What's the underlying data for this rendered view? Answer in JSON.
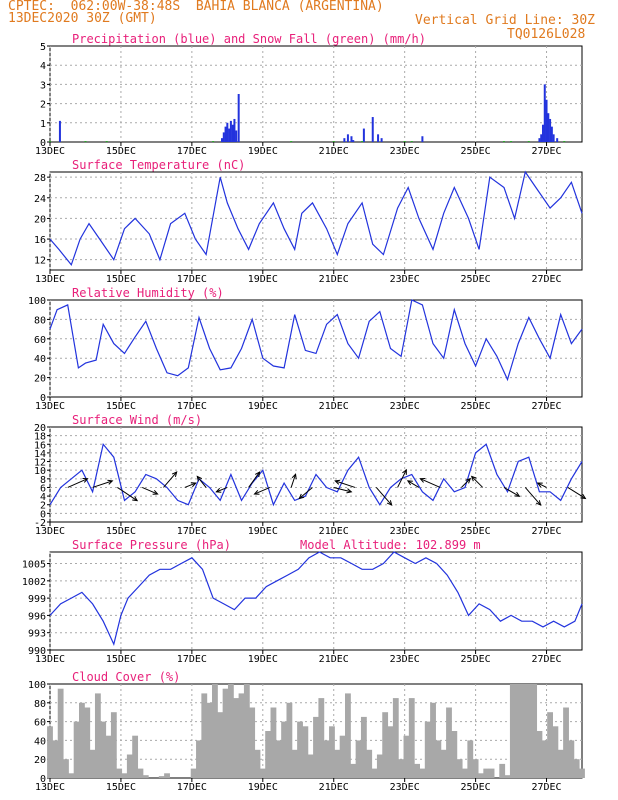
{
  "header": {
    "station": "CPTEC:  062:00W-38:48S  BAHIA BLANCA (ARGENTINA)",
    "run": "13DEC2020 30Z (GMT)",
    "grid_note": "Vertical Grid Line: 30Z",
    "model_code": "TQ0126L028",
    "color": "#e07a1f"
  },
  "colors": {
    "title": "#e8207a",
    "line": "#2233dd",
    "precip": "#2233dd",
    "snow": "#22aa22",
    "cloud": "#a8a8a8",
    "grid": "#aaaaaa",
    "arrow": "#000000"
  },
  "x_axis": {
    "tick_days": [
      0,
      2,
      4,
      6,
      8,
      10,
      12,
      14
    ],
    "tick_labels": [
      "13DEC",
      "15DEC",
      "17DEC",
      "19DEC",
      "21DEC",
      "23DEC",
      "25DEC",
      "27DEC"
    ],
    "day_range": [
      0,
      15
    ]
  },
  "chart_data": [
    {
      "type": "bar",
      "title": "Precipitation (blue) and Snow Fall (green) (mm/h)",
      "ylim": [
        0,
        5
      ],
      "yticks": [
        0,
        1,
        2,
        3,
        4,
        5
      ],
      "series": [
        {
          "name": "Precipitation",
          "x_day": [
            0.28,
            4.85,
            4.9,
            4.95,
            5.0,
            5.05,
            5.1,
            5.15,
            5.2,
            5.25,
            5.32,
            8.3,
            8.4,
            8.5,
            8.55,
            8.85,
            9.1,
            9.25,
            9.35,
            10.5,
            13.8,
            13.85,
            13.9,
            13.95,
            14.0,
            14.05,
            14.1,
            14.15,
            14.2,
            14.3
          ],
          "values": [
            1.1,
            0.2,
            0.5,
            0.8,
            1.0,
            0.7,
            1.1,
            0.9,
            1.2,
            0.6,
            2.5,
            0.2,
            0.4,
            0.3,
            0.1,
            0.7,
            1.3,
            0.4,
            0.2,
            0.3,
            0.2,
            0.4,
            0.9,
            3.0,
            2.2,
            1.5,
            1.2,
            0.8,
            0.4,
            0.2
          ]
        },
        {
          "name": "Snow Fall",
          "x_day": [
            0.0,
            1.0,
            1.6,
            4.6,
            6.8,
            8.0,
            8.8,
            10.0,
            10.2,
            12.8,
            13.0,
            13.5,
            14.5
          ],
          "values": [
            0.05,
            0.05,
            0.05,
            0.05,
            0.05,
            0.05,
            0.05,
            0.05,
            0.05,
            0.05,
            0.05,
            0.05,
            0.05
          ]
        }
      ]
    },
    {
      "type": "line",
      "title": "Surface Temperature (nC)",
      "ylim": [
        10,
        29
      ],
      "yticks": [
        12,
        16,
        20,
        24,
        28
      ],
      "series": [
        {
          "name": "",
          "x_day": [
            0,
            0.25,
            0.6,
            0.85,
            1.1,
            1.4,
            1.8,
            2.1,
            2.4,
            2.8,
            3.1,
            3.4,
            3.8,
            4.1,
            4.4,
            4.8,
            5.0,
            5.3,
            5.6,
            5.9,
            6.3,
            6.6,
            6.9,
            7.1,
            7.4,
            7.8,
            8.1,
            8.4,
            8.8,
            9.1,
            9.4,
            9.8,
            10.1,
            10.4,
            10.8,
            11.1,
            11.4,
            11.8,
            12.1,
            12.4,
            12.8,
            13.1,
            13.4,
            13.7,
            14.1,
            14.4,
            14.7,
            15.0
          ],
          "values": [
            16,
            14,
            11,
            16,
            19,
            16,
            12,
            18,
            20,
            17,
            12,
            19,
            21,
            16,
            13,
            28,
            23,
            18,
            14,
            19,
            23,
            18,
            14,
            21,
            23,
            18,
            13,
            19,
            23,
            15,
            13,
            22,
            26,
            20,
            14,
            21,
            26,
            20,
            14,
            28,
            26,
            20,
            29,
            26,
            22,
            24,
            27,
            21
          ]
        }
      ]
    },
    {
      "type": "line",
      "title": "Relative Humidity (%)",
      "ylim": [
        0,
        100
      ],
      "yticks": [
        0,
        20,
        40,
        60,
        80,
        100
      ],
      "series": [
        {
          "name": "",
          "x_day": [
            0,
            0.2,
            0.5,
            0.8,
            1.0,
            1.3,
            1.5,
            1.8,
            2.1,
            2.4,
            2.7,
            3.0,
            3.3,
            3.6,
            3.9,
            4.2,
            4.5,
            4.8,
            5.1,
            5.4,
            5.7,
            6.0,
            6.3,
            6.6,
            6.9,
            7.2,
            7.5,
            7.8,
            8.1,
            8.4,
            8.7,
            9.0,
            9.3,
            9.6,
            9.9,
            10.2,
            10.5,
            10.8,
            11.1,
            11.4,
            11.7,
            12.0,
            12.3,
            12.6,
            12.9,
            13.2,
            13.5,
            13.8,
            14.1,
            14.4,
            14.7,
            15.0
          ],
          "values": [
            70,
            90,
            95,
            30,
            35,
            38,
            75,
            55,
            45,
            62,
            78,
            50,
            25,
            22,
            30,
            82,
            50,
            28,
            30,
            50,
            80,
            40,
            32,
            30,
            85,
            48,
            45,
            75,
            85,
            55,
            40,
            78,
            88,
            50,
            42,
            100,
            95,
            55,
            40,
            90,
            55,
            32,
            60,
            42,
            18,
            55,
            82,
            60,
            40,
            85,
            55,
            70
          ]
        }
      ]
    },
    {
      "type": "line",
      "title": "Surface Wind (m/s)",
      "ylim": [
        -2,
        20
      ],
      "yticks": [
        -2,
        0,
        2,
        4,
        6,
        8,
        10,
        12,
        14,
        16,
        18,
        20
      ],
      "series": [
        {
          "name": "",
          "x_day": [
            0,
            0.3,
            0.6,
            0.9,
            1.2,
            1.5,
            1.8,
            2.1,
            2.4,
            2.7,
            3.0,
            3.3,
            3.6,
            3.9,
            4.2,
            4.5,
            4.8,
            5.1,
            5.4,
            5.7,
            6.0,
            6.3,
            6.6,
            6.9,
            7.2,
            7.5,
            7.8,
            8.1,
            8.4,
            8.7,
            9.0,
            9.3,
            9.6,
            9.9,
            10.2,
            10.5,
            10.8,
            11.1,
            11.4,
            11.7,
            12.0,
            12.3,
            12.6,
            12.9,
            13.2,
            13.5,
            13.8,
            14.1,
            14.4,
            14.7,
            15.0
          ],
          "values": [
            2,
            6,
            8,
            10,
            5,
            16,
            13,
            3,
            5,
            9,
            8,
            6,
            3,
            2,
            8,
            6,
            3,
            9,
            3,
            7,
            10,
            2,
            7,
            3,
            4,
            9,
            6,
            5,
            10,
            13,
            6,
            2,
            6,
            8,
            9,
            5,
            3,
            8,
            5,
            6,
            14,
            16,
            9,
            5,
            12,
            13,
            5,
            5,
            3,
            8,
            12
          ]
        }
      ],
      "arrows": {
        "x_day": [
          0.5,
          1.2,
          1.9,
          2.6,
          3.2,
          3.8,
          4.4,
          5.0,
          5.6,
          6.2,
          6.8,
          7.4,
          8.0,
          8.6,
          9.2,
          9.8,
          10.4,
          11.0,
          11.6,
          12.2,
          12.8,
          13.4,
          14.0,
          14.6
        ],
        "u": [
          9,
          9,
          9,
          7,
          6,
          5,
          -4,
          -5,
          5,
          -7,
          2,
          -6,
          8,
          -9,
          7,
          4,
          -5,
          -9,
          4,
          -5,
          7,
          7,
          -4,
          8
        ],
        "v": [
          4,
          3,
          -6,
          -3,
          7,
          2,
          5,
          -2,
          7,
          -3,
          6,
          -5,
          -2,
          3,
          -8,
          8,
          3,
          4,
          4,
          5,
          -4,
          -8,
          2,
          -5
        ]
      }
    },
    {
      "type": "line",
      "title": "Surface Pressure (hPa)",
      "annotation": "Model Altitude: 102.899 m",
      "ylim": [
        990,
        1007
      ],
      "yticks": [
        990,
        993,
        996,
        999,
        1002,
        1005
      ],
      "series": [
        {
          "name": "",
          "x_day": [
            0,
            0.3,
            0.6,
            0.9,
            1.2,
            1.5,
            1.8,
            2.0,
            2.2,
            2.5,
            2.8,
            3.1,
            3.4,
            3.7,
            4.0,
            4.3,
            4.6,
            4.9,
            5.2,
            5.5,
            5.8,
            6.1,
            6.4,
            6.7,
            7.0,
            7.3,
            7.6,
            7.9,
            8.2,
            8.5,
            8.8,
            9.1,
            9.4,
            9.7,
            10.0,
            10.3,
            10.6,
            10.9,
            11.2,
            11.5,
            11.8,
            12.1,
            12.4,
            12.7,
            13.0,
            13.3,
            13.6,
            13.9,
            14.2,
            14.5,
            14.8,
            15.0
          ],
          "values": [
            996,
            998,
            999,
            1000,
            998,
            995,
            991,
            996,
            999,
            1001,
            1003,
            1004,
            1004,
            1005,
            1006,
            1004,
            999,
            998,
            997,
            999,
            999,
            1001,
            1002,
            1003,
            1004,
            1006,
            1007,
            1006,
            1006,
            1005,
            1004,
            1004,
            1005,
            1007,
            1006,
            1005,
            1006,
            1005,
            1003,
            1000,
            996,
            998,
            997,
            995,
            996,
            995,
            995,
            994,
            995,
            994,
            995,
            998
          ]
        }
      ]
    },
    {
      "type": "area",
      "title": "Cloud Cover (%)",
      "ylim": [
        0,
        100
      ],
      "yticks": [
        0,
        20,
        40,
        60,
        80,
        100
      ],
      "series": [
        {
          "name": "",
          "x_day": [
            0,
            0.15,
            0.3,
            0.45,
            0.6,
            0.75,
            0.9,
            1.05,
            1.2,
            1.35,
            1.5,
            1.65,
            1.8,
            1.95,
            2.1,
            2.25,
            2.4,
            2.55,
            2.7,
            2.85,
            3.0,
            3.15,
            3.3,
            3.45,
            3.6,
            3.75,
            3.9,
            4.05,
            4.2,
            4.35,
            4.5,
            4.65,
            4.8,
            4.95,
            5.1,
            5.25,
            5.4,
            5.55,
            5.7,
            5.85,
            6.0,
            6.15,
            6.3,
            6.45,
            6.6,
            6.75,
            6.9,
            7.05,
            7.2,
            7.35,
            7.5,
            7.65,
            7.8,
            7.95,
            8.1,
            8.25,
            8.4,
            8.55,
            8.7,
            8.85,
            9.0,
            9.15,
            9.3,
            9.45,
            9.6,
            9.75,
            9.9,
            10.05,
            10.2,
            10.35,
            10.5,
            10.65,
            10.8,
            10.95,
            11.1,
            11.25,
            11.4,
            11.55,
            11.7,
            11.85,
            12.0,
            12.15,
            12.3,
            12.45,
            12.6,
            12.75,
            12.9,
            13.05,
            13.2,
            13.35,
            13.5,
            13.65,
            13.8,
            13.95,
            14.1,
            14.25,
            14.4,
            14.55,
            14.7,
            14.85,
            15.0
          ],
          "values": [
            55,
            40,
            95,
            20,
            5,
            60,
            80,
            75,
            30,
            90,
            60,
            45,
            70,
            10,
            5,
            25,
            45,
            10,
            3,
            0,
            0,
            2,
            5,
            0,
            0,
            0,
            0,
            10,
            40,
            90,
            80,
            100,
            70,
            95,
            100,
            85,
            90,
            100,
            75,
            30,
            10,
            50,
            75,
            40,
            60,
            80,
            30,
            60,
            55,
            25,
            65,
            85,
            40,
            55,
            30,
            45,
            90,
            15,
            40,
            65,
            30,
            10,
            25,
            70,
            55,
            85,
            20,
            45,
            85,
            15,
            10,
            60,
            80,
            40,
            30,
            75,
            50,
            20,
            10,
            40,
            20,
            5,
            10,
            10,
            0,
            15,
            3,
            100,
            100,
            100,
            100,
            100,
            50,
            40,
            70,
            55,
            30,
            75,
            40,
            20,
            10
          ]
        }
      ]
    }
  ]
}
